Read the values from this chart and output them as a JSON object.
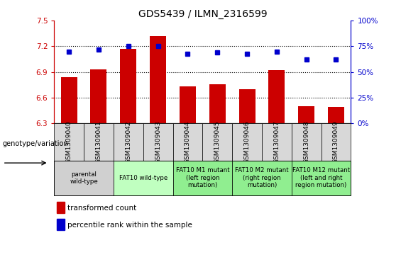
{
  "title": "GDS5439 / ILMN_2316599",
  "samples": [
    "GSM1309040",
    "GSM1309041",
    "GSM1309042",
    "GSM1309043",
    "GSM1309044",
    "GSM1309045",
    "GSM1309046",
    "GSM1309047",
    "GSM1309048",
    "GSM1309049"
  ],
  "red_values": [
    6.84,
    6.93,
    7.17,
    7.32,
    6.73,
    6.76,
    6.7,
    6.92,
    6.5,
    6.49
  ],
  "blue_values": [
    70,
    72,
    75,
    75,
    68,
    69,
    68,
    70,
    62,
    62
  ],
  "ylim_left": [
    6.3,
    7.5
  ],
  "ylim_right": [
    0,
    100
  ],
  "yticks_left": [
    6.3,
    6.6,
    6.9,
    7.2,
    7.5
  ],
  "yticks_right": [
    0,
    25,
    50,
    75,
    100
  ],
  "ytick_labels_right": [
    "0%",
    "25%",
    "50%",
    "75%",
    "100%"
  ],
  "hlines": [
    6.6,
    6.9,
    7.2
  ],
  "bar_color": "#cc0000",
  "dot_color": "#0000cc",
  "bar_bottom": 6.3,
  "genotype_groups": [
    {
      "label": "parental\nwild-type",
      "start": 0,
      "end": 1,
      "color": "#d0d0d0"
    },
    {
      "label": "FAT10 wild-type",
      "start": 2,
      "end": 3,
      "color": "#c0ffc0"
    },
    {
      "label": "FAT10 M1 mutant\n(left region\nmutation)",
      "start": 4,
      "end": 5,
      "color": "#90ee90"
    },
    {
      "label": "FAT10 M2 mutant\n(right region\nmutation)",
      "start": 6,
      "end": 7,
      "color": "#90ee90"
    },
    {
      "label": "FAT10 M12 mutant\n(left and right\nregion mutation)",
      "start": 8,
      "end": 9,
      "color": "#90ee90"
    }
  ],
  "legend_red": "transformed count",
  "legend_blue": "percentile rank within the sample",
  "genotype_label": "genotype/variation",
  "title_fontsize": 10,
  "tick_fontsize": 7.5,
  "sample_fontsize": 6.5,
  "table_fontsize": 6.2,
  "legend_fontsize": 7.5,
  "sample_cell_color": "#d8d8d8"
}
